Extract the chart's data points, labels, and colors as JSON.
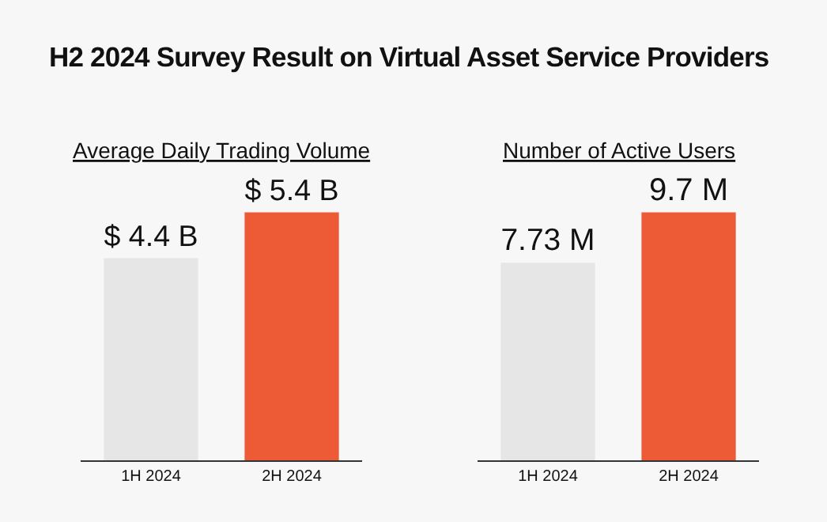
{
  "chart_data": [
    {
      "type": "bar",
      "title": "Average Daily Trading Volume",
      "annotations": [
        "H2 2024 Survey Result on Virtual Asset Service Providers"
      ],
      "categories": [
        "1H 2024",
        "2H 2024"
      ],
      "values": [
        4.4,
        5.4
      ],
      "colors": [
        "#e6e6e6",
        "#ec5b36"
      ],
      "value_labels": [
        "$ 4.4 B",
        "$ 5.4 B"
      ],
      "tick_labels": "x"
    },
    {
      "type": "bar",
      "title": "Number of Active Users",
      "categories": [
        "1H 2024",
        "2H 2024"
      ],
      "values": [
        7.73,
        9.7
      ],
      "colors": [
        "#e6e6e6",
        "#ec5b36"
      ],
      "value_labels": [
        "7.73 M",
        "9.7 M"
      ],
      "tick_labels": "x"
    }
  ]
}
